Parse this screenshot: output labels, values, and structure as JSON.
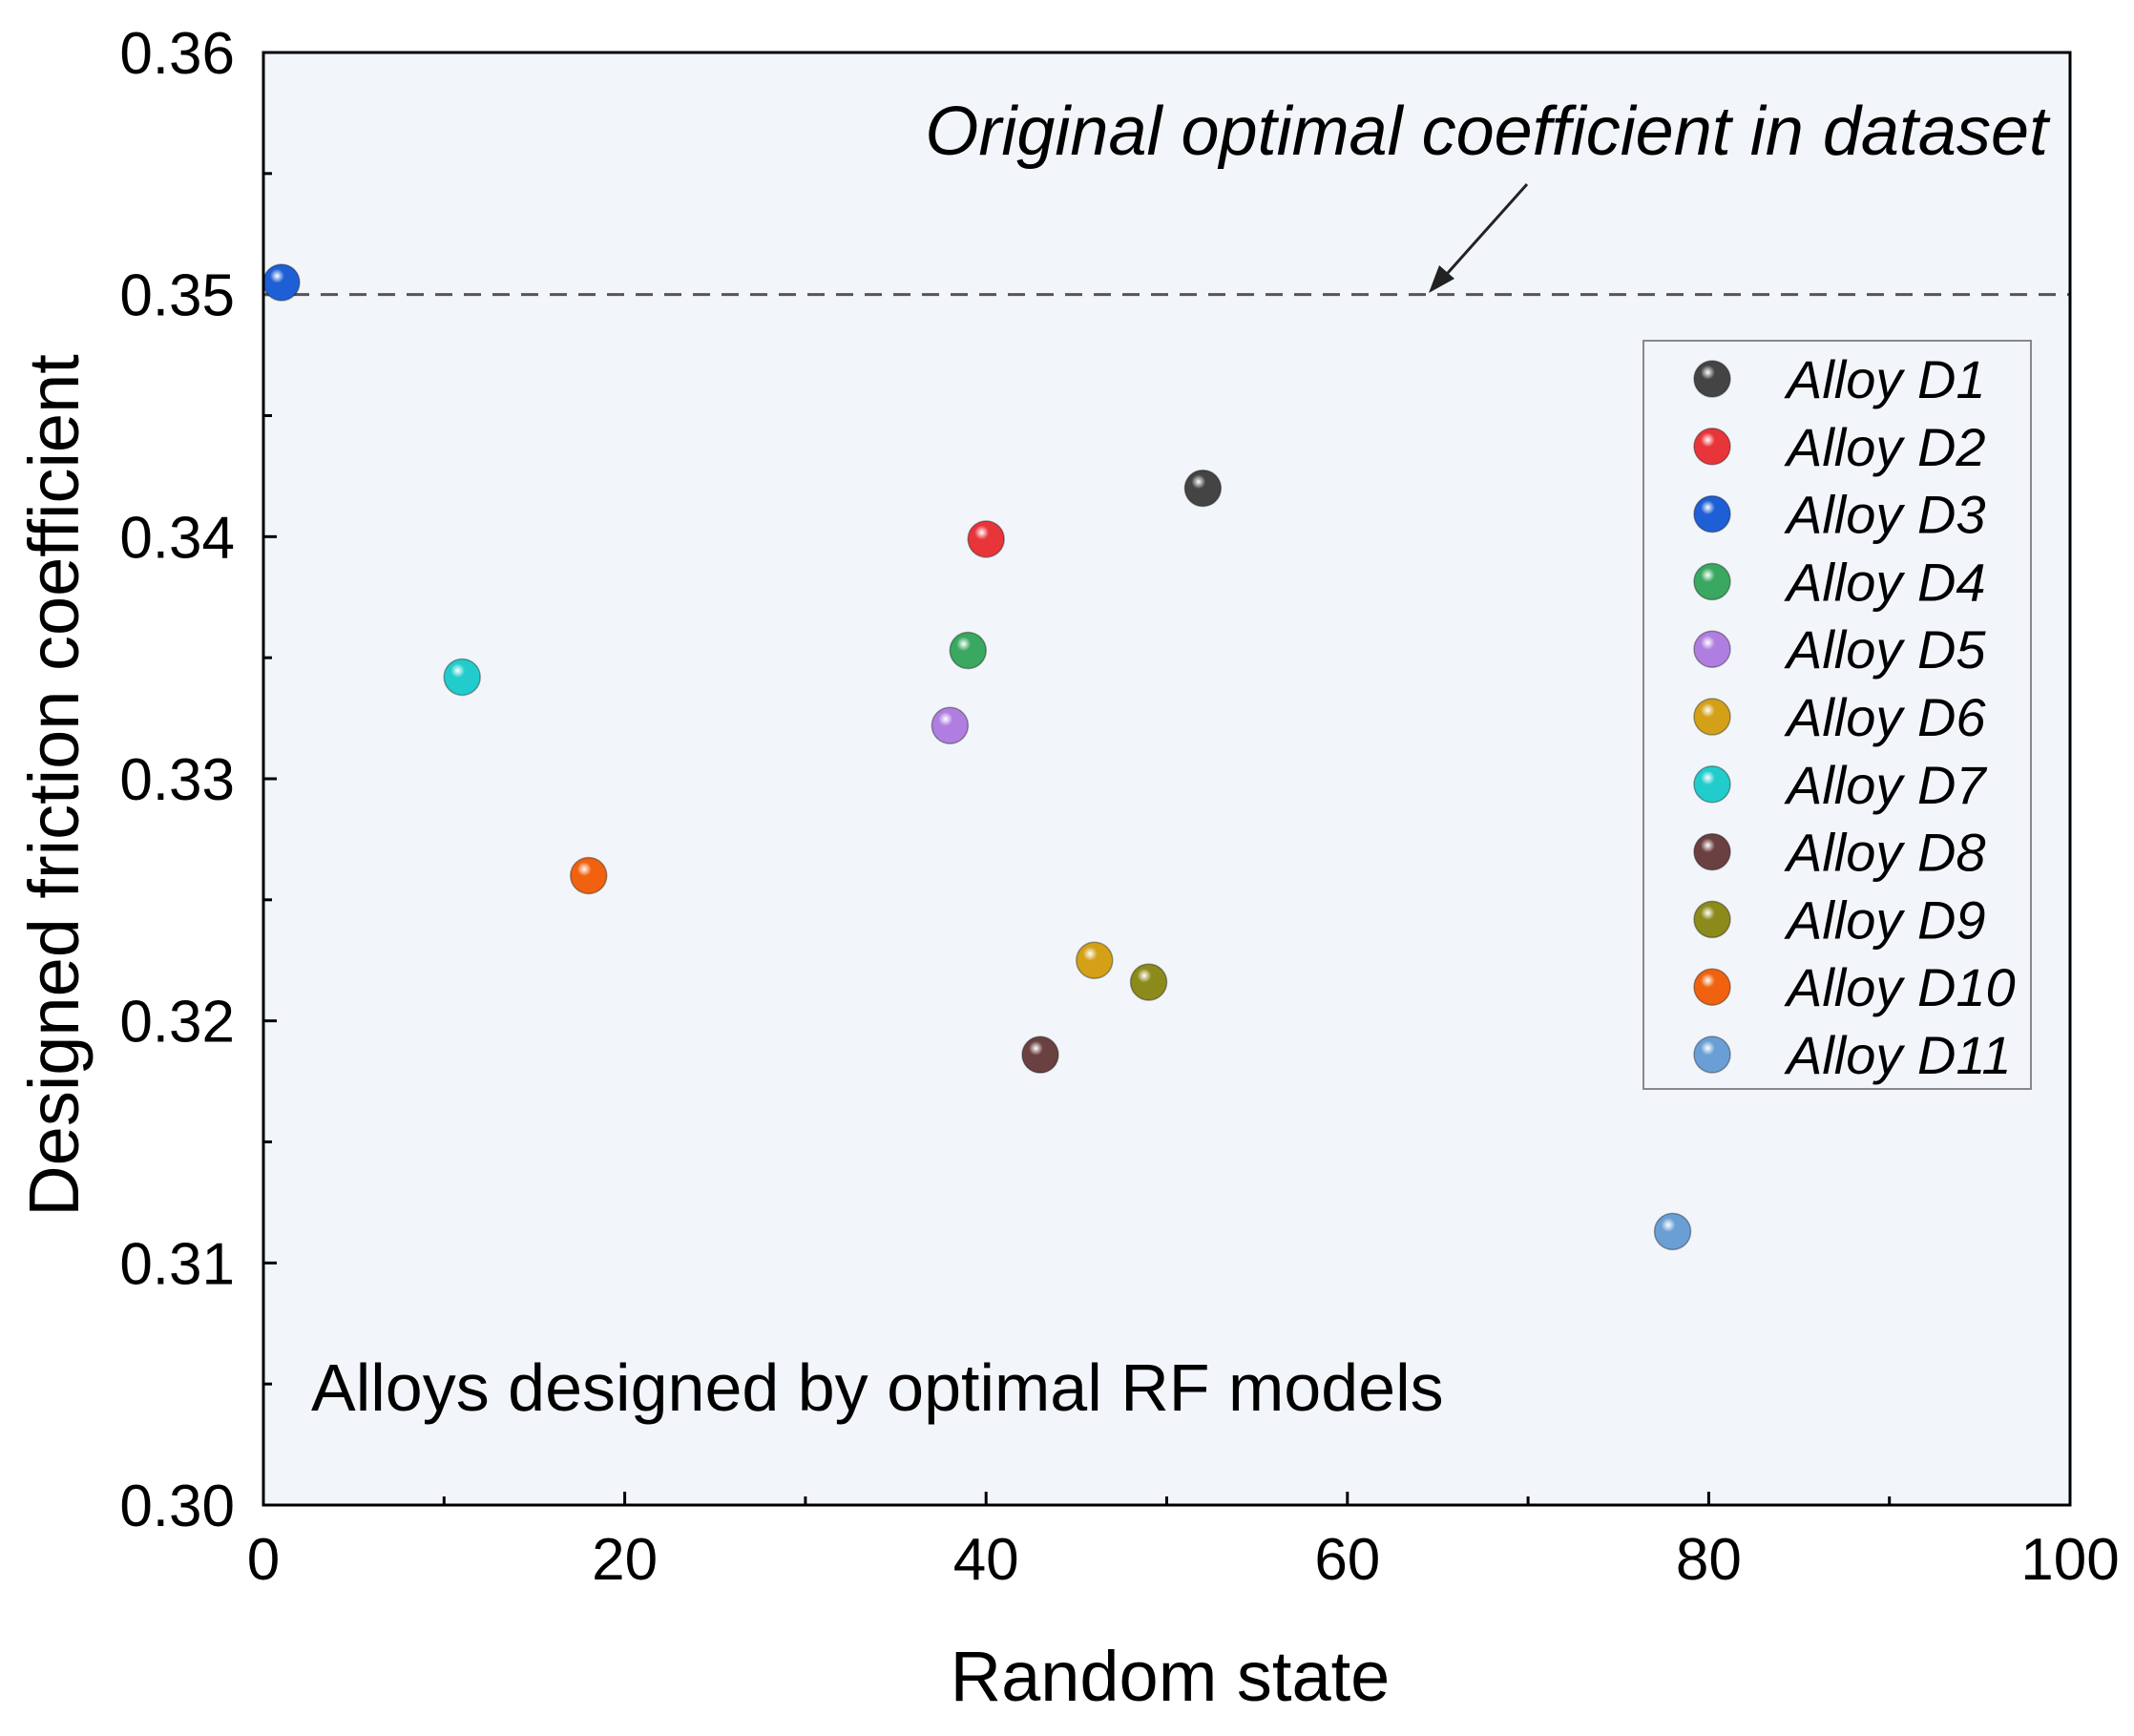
{
  "chart_data": {
    "type": "scatter",
    "xlabel": "Random state",
    "ylabel": "Designed friction coefficient",
    "xlim": [
      0,
      100
    ],
    "ylim": [
      0.3,
      0.36
    ],
    "x_ticks": [
      0,
      20,
      40,
      60,
      80,
      100
    ],
    "y_ticks": [
      0.3,
      0.31,
      0.32,
      0.33,
      0.34,
      0.35,
      0.36
    ],
    "x_tick_labels": [
      "0",
      "20",
      "40",
      "60",
      "80",
      "100"
    ],
    "y_tick_labels": [
      "0.30",
      "0.31",
      "0.32",
      "0.33",
      "0.34",
      "0.35",
      "0.36"
    ],
    "grid": false,
    "background_color": "#f2f6fa",
    "reference_line": {
      "y": 0.35,
      "style": "dashed",
      "color": "#555555"
    },
    "annotation_top": "Original optimal coefficient in dataset",
    "annotation_bottom": "Alloys designed by optimal RF models",
    "legend_position": "right",
    "series": [
      {
        "name": "Alloy D1",
        "x": 52,
        "y": 0.342,
        "color": "#444444"
      },
      {
        "name": "Alloy D2",
        "x": 40,
        "y": 0.3399,
        "color": "#e8353a"
      },
      {
        "name": "Alloy D3",
        "x": 1,
        "y": 0.3505,
        "color": "#1f5fd6"
      },
      {
        "name": "Alloy D4",
        "x": 39,
        "y": 0.3353,
        "color": "#3aa860"
      },
      {
        "name": "Alloy D5",
        "x": 38,
        "y": 0.3322,
        "color": "#b07ee0"
      },
      {
        "name": "Alloy D6",
        "x": 46,
        "y": 0.3225,
        "color": "#d4a017"
      },
      {
        "name": "Alloy D7",
        "x": 11,
        "y": 0.3342,
        "color": "#22cccc"
      },
      {
        "name": "Alloy D8",
        "x": 43,
        "y": 0.3186,
        "color": "#6b4040"
      },
      {
        "name": "Alloy D9",
        "x": 49,
        "y": 0.3216,
        "color": "#8c8a1a"
      },
      {
        "name": "Alloy D10",
        "x": 18,
        "y": 0.326,
        "color": "#f0620f"
      },
      {
        "name": "Alloy D11",
        "x": 78,
        "y": 0.3113,
        "color": "#6a9fd6"
      }
    ]
  }
}
